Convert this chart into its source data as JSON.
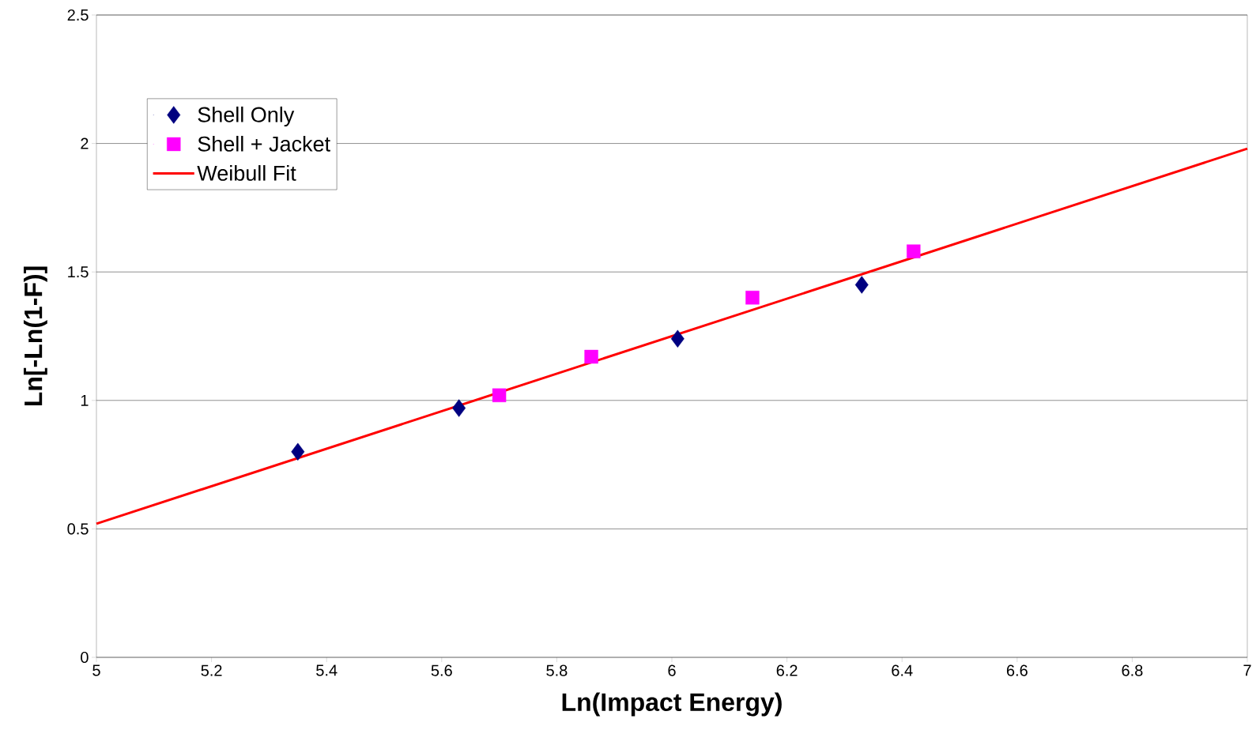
{
  "chart_data": {
    "type": "scatter",
    "xlabel": "Ln(Impact Energy)",
    "ylabel": "Ln[-Ln(1-F)]",
    "xlim": [
      5,
      7
    ],
    "ylim": [
      0,
      2.5
    ],
    "xticks": [
      5,
      5.2,
      5.4,
      5.6,
      5.8,
      6,
      6.2,
      6.4,
      6.6,
      6.8,
      7
    ],
    "yticks": [
      0,
      0.5,
      1,
      1.5,
      2,
      2.5
    ],
    "grid": "y",
    "legend": "top left",
    "series": [
      {
        "name": "Shell Only",
        "marker": "diamond",
        "color": "#000080",
        "x": [
          5.35,
          5.63,
          6.01,
          6.33
        ],
        "values": [
          0.8,
          0.97,
          1.24,
          1.45
        ]
      },
      {
        "name": "Shell + Jacket",
        "marker": "square",
        "color": "#ff00ff",
        "x": [
          5.7,
          5.86,
          6.14,
          6.42
        ],
        "values": [
          1.02,
          1.17,
          1.4,
          1.58
        ]
      },
      {
        "name": "Weibull Fit",
        "type": "line",
        "marker": "none",
        "line_style": "solid",
        "color": "#ff0000",
        "x": [
          5,
          7
        ],
        "values": [
          0.52,
          1.98
        ]
      }
    ]
  }
}
